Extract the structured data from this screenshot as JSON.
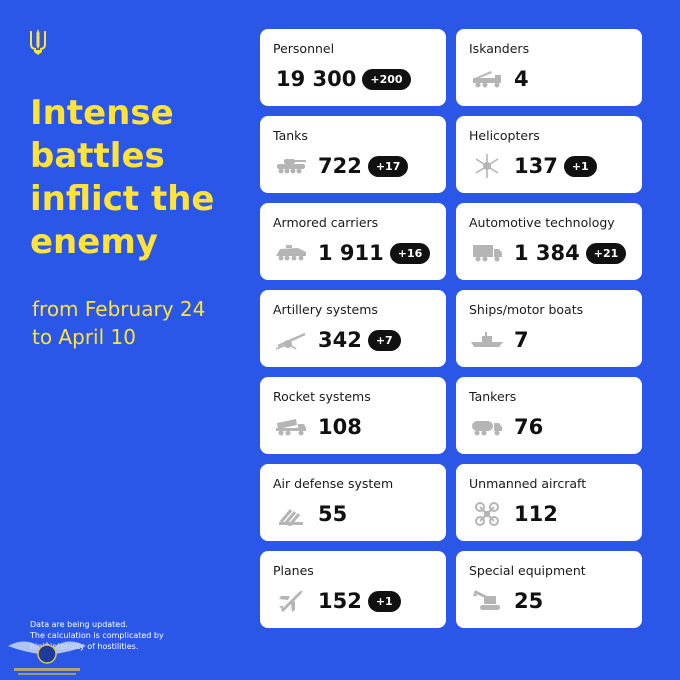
{
  "headline": [
    "Intense",
    "battles",
    "inflict the",
    "enemy"
  ],
  "period": [
    "from February 24",
    "to April 10"
  ],
  "footnote": [
    "Data are being updated.",
    "The calculation is complicated by",
    "high intensity of hostilities."
  ],
  "colors": {
    "background": "#2a57e8",
    "accent": "#ffe33a",
    "badge": "#111111",
    "card": "#ffffff",
    "icon": "#b5b5b5"
  },
  "cards": [
    {
      "label": "Personnel",
      "value": "19 300",
      "delta": "+200",
      "icon": "none"
    },
    {
      "label": "Iskanders",
      "value": "4",
      "delta": "",
      "icon": "iskander-icon"
    },
    {
      "label": "Tanks",
      "value": "722",
      "delta": "+17",
      "icon": "tank-icon"
    },
    {
      "label": "Helicopters",
      "value": "137",
      "delta": "+1",
      "icon": "helicopter-icon"
    },
    {
      "label": "Armored carriers",
      "value": "1 911",
      "delta": "+16",
      "icon": "armored-carrier-icon"
    },
    {
      "label": "Automotive technology",
      "value": "1 384",
      "delta": "+21",
      "icon": "truck-icon"
    },
    {
      "label": "Artillery systems",
      "value": "342",
      "delta": "+7",
      "icon": "artillery-icon"
    },
    {
      "label": "Ships/motor boats",
      "value": "7",
      "delta": "",
      "icon": "ship-icon"
    },
    {
      "label": "Rocket systems",
      "value": "108",
      "delta": "",
      "icon": "rocket-launcher-icon"
    },
    {
      "label": "Tankers",
      "value": "76",
      "delta": "",
      "icon": "fuel-tanker-icon"
    },
    {
      "label": "Air defense system",
      "value": "55",
      "delta": "",
      "icon": "air-defense-icon"
    },
    {
      "label": "Unmanned aircraft",
      "value": "112",
      "delta": "",
      "icon": "drone-icon"
    },
    {
      "label": "Planes",
      "value": "152",
      "delta": "+1",
      "icon": "plane-icon"
    },
    {
      "label": "Special equipment",
      "value": "25",
      "delta": "",
      "icon": "excavator-icon"
    }
  ]
}
